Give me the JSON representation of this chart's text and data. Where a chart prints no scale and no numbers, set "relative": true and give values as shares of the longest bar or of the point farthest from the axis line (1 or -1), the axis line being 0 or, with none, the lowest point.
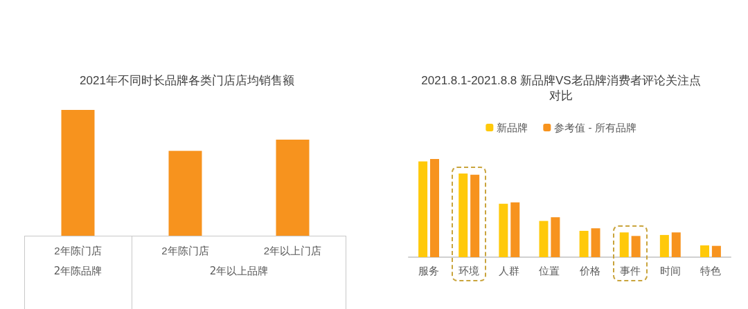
{
  "chart_data": [
    {
      "type": "bar",
      "title": "2021年不同时长品牌各类门店店均销售额",
      "relative": true,
      "categories": [
        "2年陈门店",
        "2年陈门店",
        "2年以上门店"
      ],
      "series": [
        {
          "color": "#f7931e",
          "values": [
            1,
            0.675,
            0.764
          ]
        }
      ],
      "annotations": [
        "2年陈品牌",
        "2年以上品牌"
      ],
      "legend": false,
      "grid": false
    },
    {
      "type": "bar",
      "title": "2021.8.1-2021.8.8 新品牌VS老品牌消费者评论关注点对比",
      "relative": true,
      "categories": [
        "服务",
        "环境",
        "人群",
        "位置",
        "价格",
        "事件",
        "时间",
        "特色"
      ],
      "series": [
        {
          "name": "新品牌",
          "color": "#ffc90a",
          "values": [
            0.976,
            0.852,
            0.544,
            0.369,
            0.268,
            0.252,
            0.226,
            0.12
          ]
        },
        {
          "name": "参考值 - 所有品牌",
          "color": "#f7931e",
          "values": [
            1,
            0.84,
            0.558,
            0.407,
            0.294,
            0.216,
            0.252,
            0.115
          ]
        }
      ],
      "legend": "top",
      "grid": false
    }
  ]
}
